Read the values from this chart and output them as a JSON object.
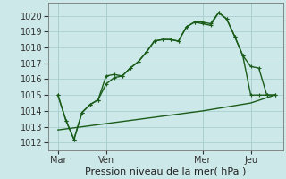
{
  "title": "Pression niveau de la mer( hPa )",
  "bg_color": "#cce8e8",
  "grid_color": "#aacfcf",
  "line_color": "#1a5c1a",
  "ylim": [
    1011.5,
    1020.8
  ],
  "yticks": [
    1012,
    1013,
    1014,
    1015,
    1016,
    1017,
    1018,
    1019,
    1020
  ],
  "xtick_labels": [
    "Mar",
    "Ven",
    "Mer",
    "Jeu"
  ],
  "xtick_positions": [
    0,
    24,
    72,
    96
  ],
  "vline_positions": [
    0,
    24,
    72,
    96
  ],
  "line1_x": [
    0,
    4,
    8,
    12,
    16,
    20,
    24,
    28,
    32,
    36,
    40,
    44,
    48,
    52,
    56,
    60,
    64,
    68,
    72,
    76,
    80,
    84,
    88,
    92,
    96,
    100,
    104,
    108
  ],
  "line1_y": [
    1015.0,
    1013.4,
    1012.2,
    1013.9,
    1014.4,
    1014.7,
    1015.7,
    1016.1,
    1016.2,
    1016.7,
    1017.1,
    1017.7,
    1018.4,
    1018.5,
    1018.5,
    1018.4,
    1019.3,
    1019.6,
    1019.5,
    1019.4,
    1020.2,
    1019.8,
    1018.7,
    1017.5,
    1016.8,
    1016.7,
    1015.0,
    1015.0
  ],
  "line2_x": [
    0,
    4,
    8,
    12,
    16,
    20,
    24,
    28,
    32,
    36,
    40,
    44,
    48,
    52,
    56,
    60,
    64,
    68,
    72,
    76,
    80,
    84,
    88,
    92,
    96,
    100,
    104,
    108
  ],
  "line2_y": [
    1015.0,
    1013.4,
    1012.2,
    1013.9,
    1014.4,
    1014.7,
    1016.2,
    1016.3,
    1016.2,
    1016.7,
    1017.1,
    1017.7,
    1018.4,
    1018.5,
    1018.5,
    1018.4,
    1019.3,
    1019.6,
    1019.6,
    1019.5,
    1020.2,
    1019.8,
    1018.7,
    1017.5,
    1015.0,
    1015.0,
    1015.0,
    1015.0
  ],
  "line3_x": [
    0,
    24,
    48,
    72,
    96,
    108
  ],
  "line3_y": [
    1012.8,
    1013.2,
    1013.6,
    1014.0,
    1014.5,
    1015.0
  ],
  "marker_style": "+",
  "marker_size": 3,
  "line_width": 1.0,
  "tick_fontsize": 7,
  "xlabel_fontsize": 8,
  "figsize": [
    3.2,
    2.0
  ],
  "dpi": 100
}
